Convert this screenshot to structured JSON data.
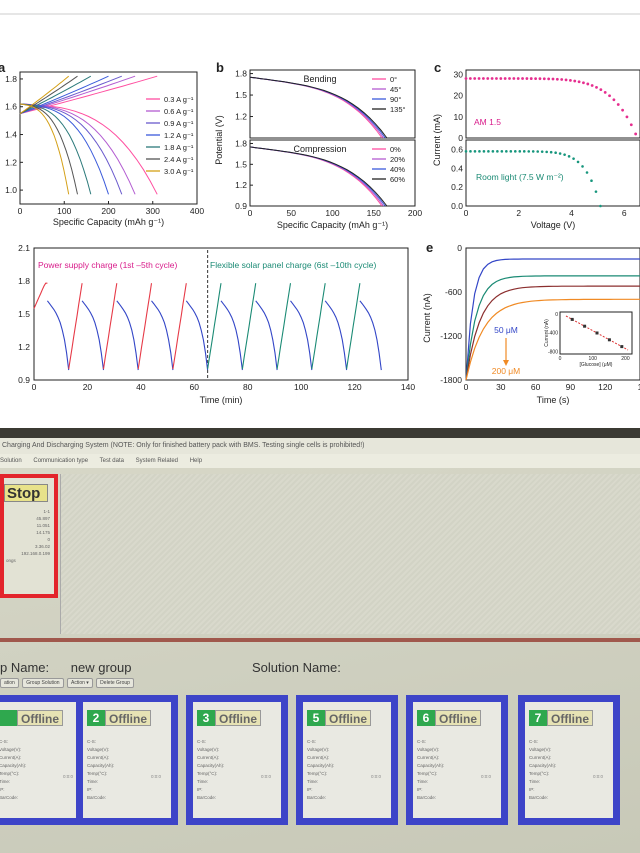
{
  "figure": {
    "panels": [
      {
        "label": "a",
        "xlabel": "Specific Capacity (mAh g⁻¹)",
        "ylabel": "",
        "xticks": [
          "0",
          "100",
          "200",
          "300",
          "400"
        ],
        "yticks": [
          "1.8",
          "1.6",
          "1.4",
          "1.2",
          "1.0"
        ],
        "legend": [
          "0.3 A g⁻¹",
          "0.6 A g⁻¹",
          "0.9 A g⁻¹",
          "1.2 A g⁻¹",
          "1.8 A g⁻¹",
          "2.4 A g⁻¹",
          "3.0 A g⁻¹"
        ]
      },
      {
        "label": "b",
        "xlabel": "Specific Capacity (mAh g⁻¹)",
        "ylabel": "Potential (V)",
        "xticks": [
          "0",
          "50",
          "100",
          "150",
          "200"
        ],
        "top_title": "Bending",
        "top_legend": [
          "0°",
          "45°",
          "90°",
          "135°"
        ],
        "top_yticks": [
          "1.8",
          "1.5",
          "1.2"
        ],
        "bottom_title": "Compression",
        "bottom_legend": [
          "0%",
          "20%",
          "40%",
          "60%"
        ],
        "bottom_yticks": [
          "1.8",
          "1.5",
          "1.2",
          "0.9"
        ]
      },
      {
        "label": "c",
        "xlabel": "Voltage (V)",
        "ylabel": "Current (mA)",
        "xticks": [
          "0",
          "2",
          "4",
          "6"
        ],
        "top_yticks": [
          "30",
          "20",
          "10",
          "0"
        ],
        "bottom_yticks": [
          "0.6",
          "0.4",
          "0.2",
          "0.0"
        ],
        "top_annotation": "AM 1.5",
        "bottom_annotation": "Room light (7.5 W m⁻²)"
      },
      {
        "label": "",
        "xlabel": "Time (min)",
        "ylabel": "",
        "xticks": [
          "0",
          "20",
          "40",
          "60",
          "80",
          "100",
          "120",
          "140"
        ],
        "yticks": [
          "2.1",
          "1.8",
          "1.5",
          "1.2",
          "0.9"
        ],
        "annotation_left": "Power supply charge (1st –5th cycle)",
        "annotation_right": "Flexible solar panel charge (6st –10th cycle)"
      },
      {
        "label": "e",
        "xlabel": "Time (s)",
        "ylabel": "Current (nA)",
        "xticks": [
          "0",
          "30",
          "60",
          "90",
          "120",
          "1"
        ],
        "yticks": [
          "0",
          "-600",
          "-1200",
          "-1800"
        ],
        "annotation_top": "50 μM",
        "annotation_bottom": "200 μM",
        "inset_xlabel": "[Glucose] (μM)",
        "inset_ylabel": "Current (nA)",
        "inset_xticks": [
          "0",
          "100",
          "200"
        ],
        "inset_yticks": [
          "0",
          "-400",
          "-800"
        ]
      }
    ]
  },
  "screen": {
    "title": "Charging And Discharging System (NOTE: Only for finished battery pack with BMS. Testing single cells is prohibited!)",
    "menu": [
      "Solution",
      "Communication type",
      "Test data",
      "System Related",
      "Help"
    ],
    "stop_label": "Stop",
    "stats": [
      "1-1",
      "45.897",
      "11.051",
      "14.175",
      "0",
      "3.36.02",
      "192.168.0.199"
    ],
    "stats_last": "ongs",
    "group_name_label": "p Name:",
    "group_name_value": "new group",
    "solution_name_label": "Solution Name:",
    "group_buttons": [
      "ation",
      "Group Solution",
      "Action ▾",
      "Delete Group"
    ],
    "fields": [
      "C-S:",
      "Voltage(V):",
      "Current(A):",
      "Capacity(Ah):",
      "Temp(°C):",
      "Time:",
      "IP:",
      "BarCode:"
    ],
    "cards": [
      {
        "num": "",
        "status": "Offline",
        "time": "0:0:0"
      },
      {
        "num": "2",
        "status": "Offline",
        "time": "0:0:0"
      },
      {
        "num": "3",
        "status": "Offline",
        "time": "0:0:0"
      },
      {
        "num": "5",
        "status": "Offline",
        "time": "0:0:0"
      },
      {
        "num": "6",
        "status": "Offline",
        "time": "0:0:0"
      },
      {
        "num": "7",
        "status": "Offline",
        "time": "0:0:0"
      }
    ]
  }
}
